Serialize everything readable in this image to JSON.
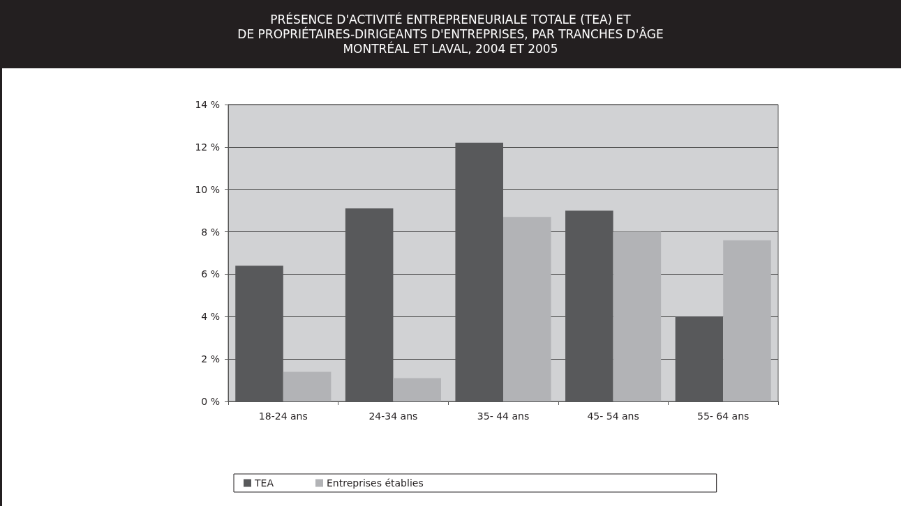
{
  "chart_data": {
    "type": "bar",
    "title": "PRÉSENCE D'ACTIVITÉ ENTREPRENEURIALE TOTALE (TEA) ET\nDE PROPRIÉTAIRES-DIRIGEANTS D'ENTREPRISES, PAR TRANCHES D'ÂGE\nMONTRÉAL ET LAVAL, 2004 ET 2005",
    "categories": [
      "18-24 ans",
      "24-34 ans",
      "35- 44 ans",
      "45- 54 ans",
      "55- 64 ans"
    ],
    "series": [
      {
        "name": "TEA",
        "color": "#58595b",
        "values": [
          6.4,
          9.1,
          12.2,
          9.0,
          4.0
        ]
      },
      {
        "name": "Entreprises établies",
        "color": "#b2b3b6",
        "values": [
          1.4,
          1.1,
          8.7,
          8.0,
          7.6
        ]
      }
    ],
    "ylim": [
      0,
      14
    ],
    "yticks": [
      {
        "value": 0,
        "label": "0 %"
      },
      {
        "value": 2,
        "label": "2 %"
      },
      {
        "value": 4,
        "label": "4 %"
      },
      {
        "value": 6,
        "label": "6 %"
      },
      {
        "value": 8,
        "label": "8 %"
      },
      {
        "value": 10,
        "label": "10 %"
      },
      {
        "value": 12,
        "label": "12 %"
      },
      {
        "value": 14,
        "label": "14 %"
      }
    ],
    "grid": "y",
    "legend": "bottom"
  }
}
